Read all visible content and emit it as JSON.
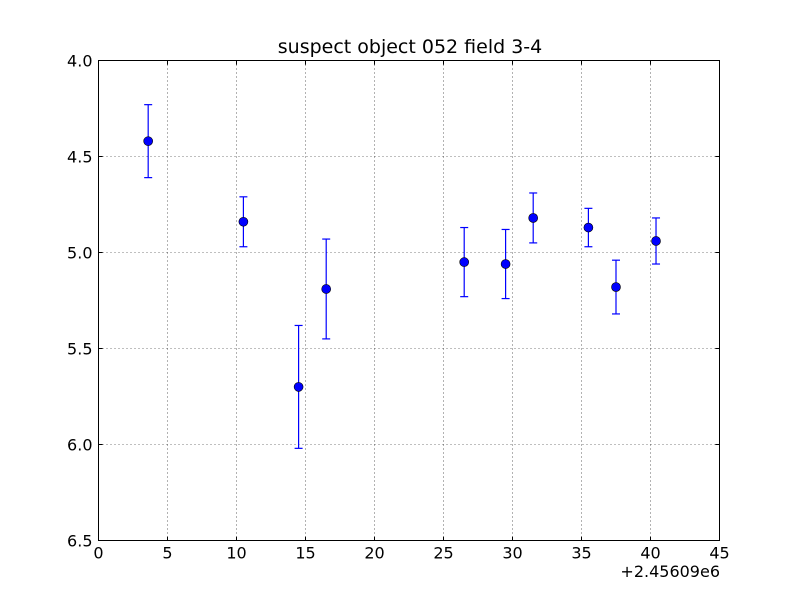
{
  "chart_data": {
    "type": "scatter",
    "title": "suspect object 052 field 3-4",
    "xlabel": "",
    "ylabel": "",
    "x_offset_label": "+2.45609e6",
    "xlim": [
      0,
      45
    ],
    "ylim": [
      6.5,
      4.0
    ],
    "y_inverted": true,
    "grid": true,
    "x_ticks": [
      0,
      5,
      10,
      15,
      20,
      25,
      30,
      35,
      40,
      45
    ],
    "x_tick_labels": [
      "0",
      "5",
      "10",
      "15",
      "20",
      "25",
      "30",
      "35",
      "40",
      "45"
    ],
    "y_ticks": [
      4.0,
      4.5,
      5.0,
      5.5,
      6.0,
      6.5
    ],
    "y_tick_labels": [
      "4.0",
      "4.5",
      "5.0",
      "5.5",
      "6.0",
      "6.5"
    ],
    "series": [
      {
        "color": "#0000ff",
        "marker": "circle",
        "errorbars": true,
        "points": [
          {
            "x": 3.6,
            "y": 4.42,
            "err": 0.19
          },
          {
            "x": 10.5,
            "y": 4.84,
            "err": 0.13
          },
          {
            "x": 14.5,
            "y": 5.7,
            "err": 0.32
          },
          {
            "x": 16.5,
            "y": 5.19,
            "err": 0.26
          },
          {
            "x": 26.5,
            "y": 5.05,
            "err": 0.18
          },
          {
            "x": 29.5,
            "y": 5.06,
            "err": 0.18
          },
          {
            "x": 31.5,
            "y": 4.82,
            "err": 0.13
          },
          {
            "x": 35.5,
            "y": 4.87,
            "err": 0.1
          },
          {
            "x": 37.5,
            "y": 5.18,
            "err": 0.14
          },
          {
            "x": 40.4,
            "y": 4.94,
            "err": 0.12
          }
        ]
      }
    ]
  }
}
